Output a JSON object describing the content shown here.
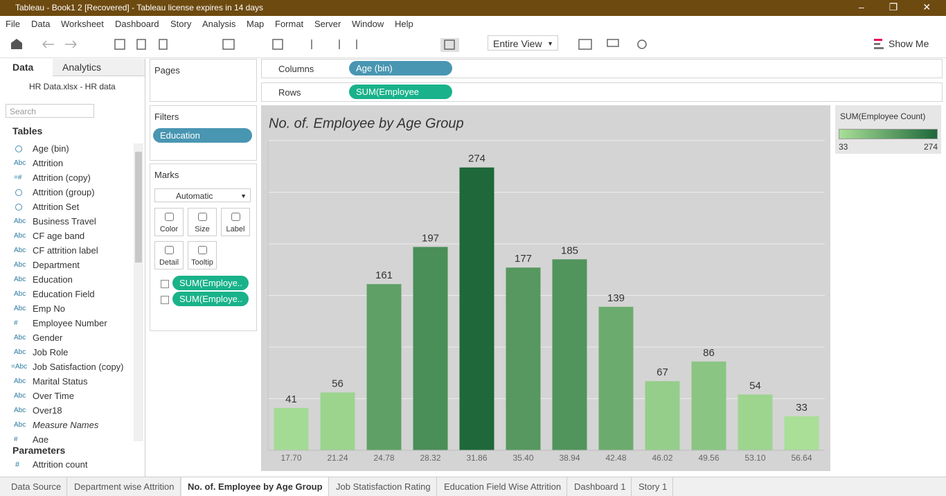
{
  "window": {
    "title": "Tableau - Book1  2 [Recovered] - Tableau license expires in 14 days"
  },
  "menu": [
    "File",
    "Data",
    "Worksheet",
    "Dashboard",
    "Story",
    "Analysis",
    "Map",
    "Format",
    "Server",
    "Window",
    "Help"
  ],
  "toolbar": {
    "view": "Entire View",
    "show_me": "Show Me"
  },
  "data_pane": {
    "tabs": [
      "Data",
      "Analytics"
    ],
    "source": "HR Data.xlsx - HR data",
    "search": "Search",
    "tables_heading": "Tables",
    "fields": [
      {
        "name": "Age (bin)"
      },
      {
        "icon": "Abc",
        "name": "Attrition"
      },
      {
        "icon": "=#",
        "name": "Attrition (copy)"
      },
      {
        "name": "Attrition (group)"
      },
      {
        "name": "Attrition Set"
      },
      {
        "icon": "Abc",
        "name": "Business Travel"
      },
      {
        "icon": "Abc",
        "name": "CF age band"
      },
      {
        "icon": "Abc",
        "name": "CF attrition label"
      },
      {
        "icon": "Abc",
        "name": "Department"
      },
      {
        "icon": "Abc",
        "name": "Education"
      },
      {
        "icon": "Abc",
        "name": "Education Field"
      },
      {
        "icon": "Abc",
        "name": "Emp No"
      },
      {
        "icon": "#",
        "name": "Employee Number"
      },
      {
        "icon": "Abc",
        "name": "Gender"
      },
      {
        "icon": "Abc",
        "name": "Job Role"
      },
      {
        "icon": "=Abc",
        "name": "Job Satisfaction (copy)"
      },
      {
        "icon": "Abc",
        "name": "Marital Status"
      },
      {
        "icon": "Abc",
        "name": "Over Time"
      },
      {
        "icon": "Abc",
        "name": "Over18"
      },
      {
        "icon": "Abc",
        "name": "Measure Names"
      },
      {
        "icon": "#",
        "name": "Age"
      }
    ],
    "parameters_heading": "Parameters",
    "parameters": [
      "Attrition count"
    ]
  },
  "shelves": {
    "pages": "Pages",
    "filters": "Filters",
    "filter_pill": "Education",
    "marks": "Marks",
    "mark_type": "Automatic",
    "cards": [
      "Color",
      "Size",
      "Label",
      "Detail",
      "Tooltip"
    ],
    "mark_pills": [
      "SUM(Employe..",
      "SUM(Employe.."
    ],
    "columns": "Columns",
    "columns_pill": "Age (bin)",
    "rows": "Rows",
    "rows_pill": "SUM(Employee Coun.."
  },
  "legend": {
    "title": "SUM(Employee Count)",
    "min": 33,
    "max": 274
  },
  "chart_data": {
    "type": "bar",
    "title": "No. of. Employee by Age Group",
    "categories": [
      "17.70",
      "21.24",
      "24.78",
      "28.32",
      "31.86",
      "35.40",
      "38.94",
      "42.48",
      "46.02",
      "49.56",
      "53.10",
      "56.64"
    ],
    "values": [
      41,
      56,
      161,
      197,
      274,
      177,
      185,
      139,
      67,
      86,
      54,
      33
    ],
    "color_range": [
      "#a9df97",
      "#1e683a"
    ],
    "ylim": [
      0,
      300
    ],
    "yticks": [
      0,
      50,
      100,
      150,
      200,
      250,
      300
    ],
    "grid": true
  },
  "sheet_tabs": [
    "Data Source",
    "Department wise Attrition",
    "No. of. Employee by Age Group",
    "Job Statisfaction Rating",
    "Education Field Wise Attrition",
    "Dashboard 1",
    "Story 1"
  ]
}
